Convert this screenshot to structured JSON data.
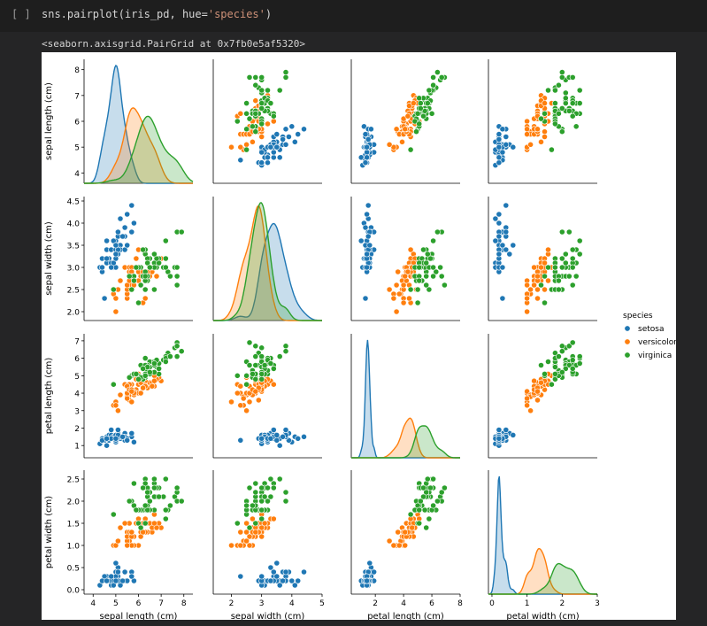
{
  "cell": {
    "prompt": "[ ]",
    "code_prefix": "sns.pairplot(iris_pd, hue=",
    "code_string": "'species'",
    "code_suffix": ")",
    "output_text": "<seaborn.axisgrid.PairGrid at 0x7fb0e5af5320>"
  },
  "chart_data": {
    "type": "scatter",
    "kind": "pairplot",
    "diag_kind": "kde",
    "variables": [
      "sepal length (cm)",
      "sepal width (cm)",
      "petal length (cm)",
      "petal width (cm)"
    ],
    "axis_ranges": [
      [
        3.6,
        8.4
      ],
      [
        1.8,
        4.6
      ],
      [
        0.3,
        7.4
      ],
      [
        -0.1,
        2.7
      ]
    ],
    "ticks": [
      [
        4,
        5,
        6,
        7,
        8
      ],
      [
        2.0,
        2.5,
        3.0,
        3.5,
        4.0,
        4.5
      ],
      [
        1,
        2,
        3,
        4,
        5,
        6,
        7
      ],
      [
        0.0,
        0.5,
        1.0,
        1.5,
        2.0,
        2.5
      ]
    ],
    "x_ticks": [
      [
        4,
        5,
        6,
        7,
        8
      ],
      [
        2,
        3,
        4,
        5
      ],
      [
        2,
        4,
        6,
        8
      ],
      [
        0,
        1,
        2,
        3
      ]
    ],
    "x_ranges": [
      [
        3.6,
        8.4
      ],
      [
        1.4,
        5.0
      ],
      [
        0.3,
        8.0
      ],
      [
        -0.1,
        3.0
      ]
    ],
    "tick_labels_y": [
      [
        "4",
        "5",
        "6",
        "7",
        "8"
      ],
      [
        "2.0",
        "2.5",
        "3.0",
        "3.5",
        "4.0",
        "4.5"
      ],
      [
        "1",
        "2",
        "3",
        "4",
        "5",
        "6",
        "7"
      ],
      [
        "0.0",
        "0.5",
        "1.0",
        "1.5",
        "2.0",
        "2.5"
      ]
    ],
    "tick_labels_x": [
      [
        "4",
        "5",
        "6",
        "7",
        "8"
      ],
      [
        "2",
        "3",
        "4",
        "5"
      ],
      [
        "2",
        "4",
        "6",
        "8"
      ],
      [
        "0",
        "1",
        "2",
        "3"
      ]
    ],
    "legend": {
      "title": "species",
      "placement": "right",
      "entries": [
        "setosa",
        "versicolor",
        "virginica"
      ]
    },
    "series": [
      {
        "name": "setosa",
        "color": "#1f77b4",
        "points": [
          [
            5.1,
            3.5,
            1.4,
            0.2
          ],
          [
            4.9,
            3.0,
            1.4,
            0.2
          ],
          [
            4.7,
            3.2,
            1.3,
            0.2
          ],
          [
            4.6,
            3.1,
            1.5,
            0.2
          ],
          [
            5.0,
            3.6,
            1.4,
            0.2
          ],
          [
            5.4,
            3.9,
            1.7,
            0.4
          ],
          [
            4.6,
            3.4,
            1.4,
            0.3
          ],
          [
            5.0,
            3.4,
            1.5,
            0.2
          ],
          [
            4.4,
            2.9,
            1.4,
            0.2
          ],
          [
            4.9,
            3.1,
            1.5,
            0.1
          ],
          [
            5.4,
            3.7,
            1.5,
            0.2
          ],
          [
            4.8,
            3.4,
            1.6,
            0.2
          ],
          [
            4.8,
            3.0,
            1.4,
            0.1
          ],
          [
            4.3,
            3.0,
            1.1,
            0.1
          ],
          [
            5.8,
            4.0,
            1.2,
            0.2
          ],
          [
            5.7,
            4.4,
            1.5,
            0.4
          ],
          [
            5.4,
            3.9,
            1.3,
            0.4
          ],
          [
            5.1,
            3.5,
            1.4,
            0.3
          ],
          [
            5.7,
            3.8,
            1.7,
            0.3
          ],
          [
            5.1,
            3.8,
            1.5,
            0.3
          ],
          [
            5.4,
            3.4,
            1.7,
            0.2
          ],
          [
            5.1,
            3.7,
            1.5,
            0.4
          ],
          [
            4.6,
            3.6,
            1.0,
            0.2
          ],
          [
            5.1,
            3.3,
            1.7,
            0.5
          ],
          [
            4.8,
            3.4,
            1.9,
            0.2
          ],
          [
            5.0,
            3.0,
            1.6,
            0.2
          ],
          [
            5.0,
            3.4,
            1.6,
            0.4
          ],
          [
            5.2,
            3.5,
            1.5,
            0.2
          ],
          [
            5.2,
            3.4,
            1.4,
            0.2
          ],
          [
            4.7,
            3.2,
            1.6,
            0.2
          ],
          [
            4.8,
            3.1,
            1.6,
            0.2
          ],
          [
            5.4,
            3.4,
            1.5,
            0.4
          ],
          [
            5.2,
            4.1,
            1.5,
            0.1
          ],
          [
            5.5,
            4.2,
            1.4,
            0.2
          ],
          [
            4.9,
            3.1,
            1.5,
            0.2
          ],
          [
            5.0,
            3.2,
            1.2,
            0.2
          ],
          [
            5.5,
            3.5,
            1.3,
            0.2
          ],
          [
            4.9,
            3.6,
            1.4,
            0.1
          ],
          [
            4.4,
            3.0,
            1.3,
            0.2
          ],
          [
            5.1,
            3.4,
            1.5,
            0.2
          ],
          [
            5.0,
            3.5,
            1.3,
            0.3
          ],
          [
            4.5,
            2.3,
            1.3,
            0.3
          ],
          [
            4.4,
            3.2,
            1.3,
            0.2
          ],
          [
            5.0,
            3.5,
            1.6,
            0.6
          ],
          [
            5.1,
            3.8,
            1.9,
            0.4
          ],
          [
            4.8,
            3.0,
            1.4,
            0.3
          ],
          [
            5.1,
            3.8,
            1.6,
            0.2
          ],
          [
            4.6,
            3.2,
            1.4,
            0.2
          ],
          [
            5.3,
            3.7,
            1.5,
            0.2
          ],
          [
            5.0,
            3.3,
            1.4,
            0.2
          ]
        ]
      },
      {
        "name": "versicolor",
        "color": "#ff7f0e",
        "points": [
          [
            7.0,
            3.2,
            4.7,
            1.4
          ],
          [
            6.4,
            3.2,
            4.5,
            1.5
          ],
          [
            6.9,
            3.1,
            4.9,
            1.5
          ],
          [
            5.5,
            2.3,
            4.0,
            1.3
          ],
          [
            6.5,
            2.8,
            4.6,
            1.5
          ],
          [
            5.7,
            2.8,
            4.5,
            1.3
          ],
          [
            6.3,
            3.3,
            4.7,
            1.6
          ],
          [
            4.9,
            2.4,
            3.3,
            1.0
          ],
          [
            6.6,
            2.9,
            4.6,
            1.3
          ],
          [
            5.2,
            2.7,
            3.9,
            1.4
          ],
          [
            5.0,
            2.0,
            3.5,
            1.0
          ],
          [
            5.9,
            3.0,
            4.2,
            1.5
          ],
          [
            6.0,
            2.2,
            4.0,
            1.0
          ],
          [
            6.1,
            2.9,
            4.7,
            1.4
          ],
          [
            5.6,
            2.9,
            3.6,
            1.3
          ],
          [
            6.7,
            3.1,
            4.4,
            1.4
          ],
          [
            5.6,
            3.0,
            4.5,
            1.5
          ],
          [
            5.8,
            2.7,
            4.1,
            1.0
          ],
          [
            6.2,
            2.2,
            4.5,
            1.5
          ],
          [
            5.6,
            2.5,
            3.9,
            1.1
          ],
          [
            5.9,
            3.2,
            4.8,
            1.8
          ],
          [
            6.1,
            2.8,
            4.0,
            1.3
          ],
          [
            6.3,
            2.5,
            4.9,
            1.5
          ],
          [
            6.1,
            2.8,
            4.7,
            1.2
          ],
          [
            6.4,
            2.9,
            4.3,
            1.3
          ],
          [
            6.6,
            3.0,
            4.4,
            1.4
          ],
          [
            6.8,
            2.8,
            4.8,
            1.4
          ],
          [
            6.7,
            3.0,
            5.0,
            1.7
          ],
          [
            6.0,
            2.9,
            4.5,
            1.5
          ],
          [
            5.7,
            2.6,
            3.5,
            1.0
          ],
          [
            5.5,
            2.4,
            3.8,
            1.1
          ],
          [
            5.5,
            2.4,
            3.7,
            1.0
          ],
          [
            5.8,
            2.7,
            3.9,
            1.2
          ],
          [
            6.0,
            2.7,
            5.1,
            1.6
          ],
          [
            5.4,
            3.0,
            4.5,
            1.5
          ],
          [
            6.0,
            3.4,
            4.5,
            1.6
          ],
          [
            6.7,
            3.1,
            4.7,
            1.5
          ],
          [
            6.3,
            2.3,
            4.4,
            1.3
          ],
          [
            5.6,
            3.0,
            4.1,
            1.3
          ],
          [
            5.5,
            2.5,
            4.0,
            1.3
          ],
          [
            5.5,
            2.6,
            4.4,
            1.2
          ],
          [
            6.1,
            3.0,
            4.6,
            1.4
          ],
          [
            5.8,
            2.6,
            4.0,
            1.2
          ],
          [
            5.0,
            2.3,
            3.3,
            1.0
          ],
          [
            5.6,
            2.7,
            4.2,
            1.3
          ],
          [
            5.7,
            3.0,
            4.2,
            1.2
          ],
          [
            5.7,
            2.9,
            4.2,
            1.3
          ],
          [
            6.2,
            2.9,
            4.3,
            1.3
          ],
          [
            5.1,
            2.5,
            3.0,
            1.1
          ],
          [
            5.7,
            2.8,
            4.1,
            1.3
          ]
        ]
      },
      {
        "name": "virginica",
        "color": "#2ca02c",
        "points": [
          [
            6.3,
            3.3,
            6.0,
            2.5
          ],
          [
            5.8,
            2.7,
            5.1,
            1.9
          ],
          [
            7.1,
            3.0,
            5.9,
            2.1
          ],
          [
            6.3,
            2.9,
            5.6,
            1.8
          ],
          [
            6.5,
            3.0,
            5.8,
            2.2
          ],
          [
            7.6,
            3.0,
            6.6,
            2.1
          ],
          [
            4.9,
            2.5,
            4.5,
            1.7
          ],
          [
            7.3,
            2.9,
            6.3,
            1.8
          ],
          [
            6.7,
            2.5,
            5.8,
            1.8
          ],
          [
            7.2,
            3.6,
            6.1,
            2.5
          ],
          [
            6.5,
            3.2,
            5.1,
            2.0
          ],
          [
            6.4,
            2.7,
            5.3,
            1.9
          ],
          [
            6.8,
            3.0,
            5.5,
            2.1
          ],
          [
            5.7,
            2.5,
            5.0,
            2.0
          ],
          [
            5.8,
            2.8,
            5.1,
            2.4
          ],
          [
            6.4,
            3.2,
            5.3,
            2.3
          ],
          [
            6.5,
            3.0,
            5.5,
            1.8
          ],
          [
            7.7,
            3.8,
            6.7,
            2.2
          ],
          [
            7.7,
            2.6,
            6.9,
            2.3
          ],
          [
            6.0,
            2.2,
            5.0,
            1.5
          ],
          [
            6.9,
            3.2,
            5.7,
            2.3
          ],
          [
            5.6,
            2.8,
            4.9,
            2.0
          ],
          [
            7.7,
            2.8,
            6.7,
            2.0
          ],
          [
            6.3,
            2.7,
            4.9,
            1.8
          ],
          [
            6.7,
            3.3,
            5.7,
            2.1
          ],
          [
            7.2,
            3.2,
            6.0,
            1.8
          ],
          [
            6.2,
            2.8,
            4.8,
            1.8
          ],
          [
            6.1,
            3.0,
            4.9,
            1.8
          ],
          [
            6.4,
            2.8,
            5.6,
            2.1
          ],
          [
            7.2,
            3.0,
            5.8,
            1.6
          ],
          [
            7.4,
            2.8,
            6.1,
            1.9
          ],
          [
            7.9,
            3.8,
            6.4,
            2.0
          ],
          [
            6.4,
            2.8,
            5.6,
            2.2
          ],
          [
            6.3,
            2.8,
            5.1,
            1.5
          ],
          [
            6.1,
            2.6,
            5.6,
            1.4
          ],
          [
            7.7,
            3.0,
            6.1,
            2.3
          ],
          [
            6.3,
            3.4,
            5.6,
            2.4
          ],
          [
            6.4,
            3.1,
            5.5,
            1.8
          ],
          [
            6.0,
            3.0,
            4.8,
            1.8
          ],
          [
            6.9,
            3.1,
            5.4,
            2.1
          ],
          [
            6.7,
            3.1,
            5.6,
            2.4
          ],
          [
            6.9,
            3.1,
            5.1,
            2.3
          ],
          [
            5.8,
            2.7,
            5.1,
            1.9
          ],
          [
            6.8,
            3.2,
            5.9,
            2.3
          ],
          [
            6.7,
            3.3,
            5.7,
            2.5
          ],
          [
            6.7,
            3.0,
            5.2,
            2.3
          ],
          [
            6.3,
            2.5,
            5.0,
            1.9
          ],
          [
            6.5,
            3.0,
            5.2,
            2.0
          ],
          [
            6.2,
            3.4,
            5.4,
            2.3
          ],
          [
            5.9,
            3.0,
            5.1,
            1.8
          ]
        ]
      }
    ]
  }
}
